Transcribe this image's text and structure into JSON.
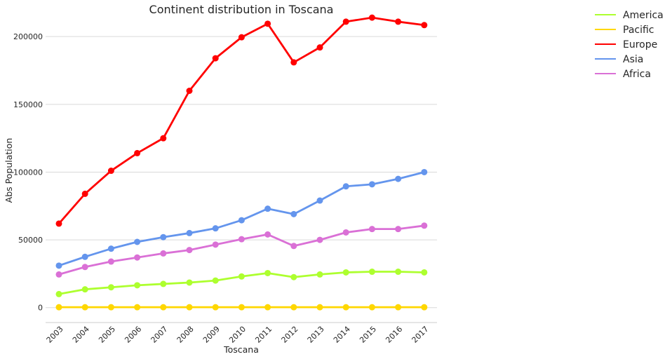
{
  "chart_data": {
    "type": "line",
    "title": "Continent distribution in Toscana",
    "xlabel": "Toscana",
    "ylabel": "Abs Population",
    "categories": [
      "2003",
      "2004",
      "2005",
      "2006",
      "2007",
      "2008",
      "2009",
      "2010",
      "2011",
      "2012",
      "2013",
      "2014",
      "2015",
      "2016",
      "2017"
    ],
    "ylim": [
      -11000,
      227000
    ],
    "yticks": [
      0,
      50000,
      100000,
      150000,
      200000
    ],
    "ytick_labels": [
      "0",
      "50000",
      "100000",
      "150000",
      "200000"
    ],
    "grid": "horizontal",
    "legend_position": "top-right",
    "series": [
      {
        "name": "America",
        "color": "#adff2f",
        "values": [
          10000,
          13500,
          15000,
          16500,
          17500,
          18500,
          20000,
          23000,
          25500,
          22500,
          24500,
          26000,
          26500,
          26500,
          26000
        ]
      },
      {
        "name": "Pacific",
        "color": "#ffd700",
        "values": [
          300,
          300,
          300,
          300,
          300,
          300,
          300,
          300,
          300,
          300,
          300,
          300,
          300,
          300,
          300
        ]
      },
      {
        "name": "Europe",
        "color": "#ff0000",
        "values": [
          62000,
          84000,
          101000,
          114000,
          125000,
          160000,
          184000,
          199500,
          209500,
          181000,
          192000,
          211000,
          214000,
          211000,
          208500
        ]
      },
      {
        "name": "Asia",
        "color": "#6495ed",
        "values": [
          31000,
          37500,
          43500,
          48500,
          52000,
          55000,
          58500,
          64500,
          73000,
          69000,
          79000,
          89500,
          91000,
          95000,
          100000
        ]
      },
      {
        "name": "Africa",
        "color": "#da70d6",
        "values": [
          24500,
          30000,
          34000,
          37000,
          40000,
          42500,
          46500,
          50500,
          54000,
          45500,
          50000,
          55500,
          58000,
          58000,
          60500
        ]
      }
    ]
  }
}
